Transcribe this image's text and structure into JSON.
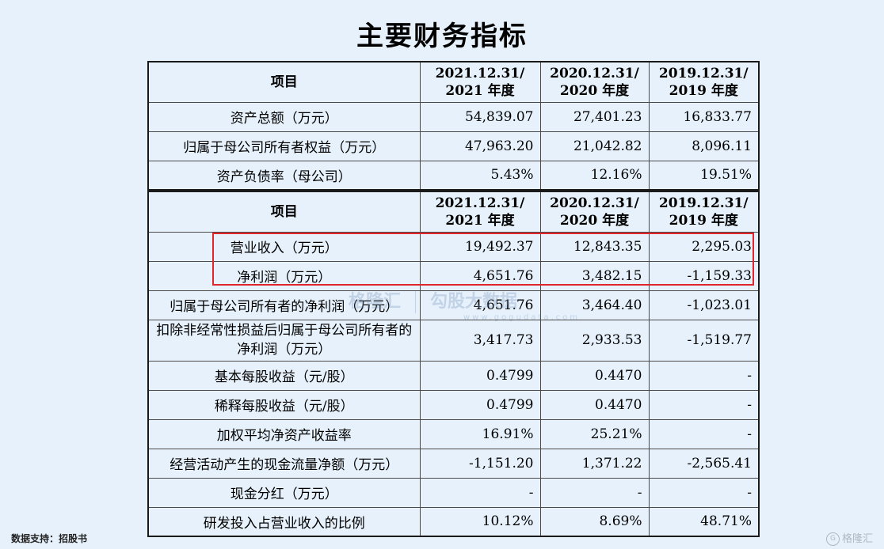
{
  "title": "主要财务指标",
  "table1": {
    "header": {
      "item": "项目",
      "c1_l1": "2021.12.31/",
      "c1_l2": "2021 年度",
      "c2_l1": "2020.12.31/",
      "c2_l2": "2020 年度",
      "c3_l1": "2019.12.31/",
      "c3_l2": "2019 年度"
    },
    "rows": [
      {
        "label": "资产总额（万元）",
        "v2021": "54,839.07",
        "v2020": "27,401.23",
        "v2019": "16,833.77"
      },
      {
        "label": "归属于母公司所有者权益（万元）",
        "v2021": "47,963.20",
        "v2020": "21,042.82",
        "v2019": "8,096.11"
      },
      {
        "label": "资产负债率（母公司）",
        "v2021": "5.43%",
        "v2020": "12.16%",
        "v2019": "19.51%"
      }
    ]
  },
  "table2": {
    "header": {
      "item": "项目",
      "c1_l1": "2021.12.31/",
      "c1_l2": "2021 年度",
      "c2_l1": "2020.12.31/",
      "c2_l2": "2020 年度",
      "c3_l1": "2019.12.31/",
      "c3_l2": "2019 年度"
    },
    "rows": [
      {
        "label": "营业收入（万元）",
        "v2021": "19,492.37",
        "v2020": "12,843.35",
        "v2019": "2,295.03"
      },
      {
        "label": "净利润（万元）",
        "v2021": "4,651.76",
        "v2020": "3,482.15",
        "v2019": "-1,159.33"
      },
      {
        "label": "归属于母公司所有者的净利润（万元）",
        "v2021": "4,651.76",
        "v2020": "3,464.40",
        "v2019": "-1,023.01"
      },
      {
        "label": "扣除非经常性损益后归属于母公司所有者的净利润（万元）",
        "v2021": "3,417.73",
        "v2020": "2,933.53",
        "v2019": "-1,519.77"
      },
      {
        "label": "基本每股收益（元/股）",
        "v2021": "0.4799",
        "v2020": "0.4470",
        "v2019": "-"
      },
      {
        "label": "稀释每股收益（元/股）",
        "v2021": "0.4799",
        "v2020": "0.4470",
        "v2019": "-"
      },
      {
        "label": "加权平均净资产收益率",
        "v2021": "16.91%",
        "v2020": "25.21%",
        "v2019": "-"
      },
      {
        "label": "经营活动产生的现金流量净额（万元）",
        "v2021": "-1,151.20",
        "v2020": "1,371.22",
        "v2019": "-2,565.41"
      },
      {
        "label": "现金分红（万元）",
        "v2021": "-",
        "v2020": "-",
        "v2019": "-"
      },
      {
        "label": "研发投入占营业收入的比例",
        "v2021": "10.12%",
        "v2020": "8.69%",
        "v2019": "48.71%"
      }
    ]
  },
  "watermark": {
    "brand": "格隆汇",
    "brand2": "勾股大数据",
    "url": "www.gogudata.com"
  },
  "source": "数据支持：招股书",
  "corner_logo": {
    "glyph": "G",
    "text": "格隆汇"
  },
  "colors": {
    "background": "#e6f1fb",
    "highlight_box": "#e0252b"
  }
}
